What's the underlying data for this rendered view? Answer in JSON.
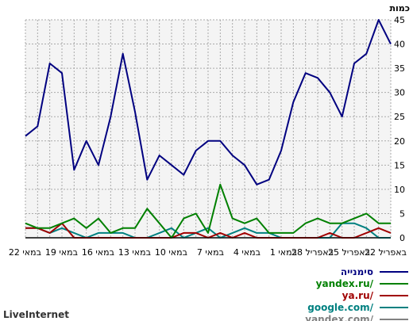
{
  "branding": "LiveInternet",
  "chart_data": {
    "type": "line",
    "ylabel": "כמות",
    "ylim": [
      0,
      45
    ],
    "yticks": [
      0,
      5,
      10,
      15,
      20,
      25,
      30,
      35,
      40,
      45
    ],
    "grid": true,
    "legend_position": "bottom-right",
    "xticks": [
      "22 באפריל",
      "25 באפריל",
      "28 באפריל",
      "1 במאי",
      "4 במאי",
      "7 במאי",
      "10 במאי",
      "13 במאי",
      "16 במאי",
      "19 במאי",
      "22 במאי"
    ],
    "x": [
      "22 באפריל",
      "23 באפריל",
      "24 באפריל",
      "25 באפריל",
      "26 באפריל",
      "27 באפריל",
      "28 באפריל",
      "29 באפריל",
      "30 באפריל",
      "1 במאי",
      "2 במאי",
      "3 במאי",
      "4 במאי",
      "5 במאי",
      "6 במאי",
      "7 במאי",
      "8 במאי",
      "9 במאי",
      "10 במאי",
      "11 במאי",
      "12 במאי",
      "13 במאי",
      "14 במאי",
      "15 במאי",
      "16 במאי",
      "17 במאי",
      "18 במאי",
      "19 במאי",
      "20 במאי",
      "21 במאי",
      "22 במאי"
    ],
    "series": [
      {
        "name": "סימנייה",
        "color": "#000080",
        "values": [
          40,
          45,
          38,
          36,
          25,
          30,
          33,
          34,
          28,
          18,
          12,
          11,
          15,
          17,
          20,
          20,
          18,
          13,
          15,
          17,
          12,
          26,
          38,
          25,
          15,
          20,
          14,
          34,
          36,
          23,
          21
        ]
      },
      {
        "name": "yandex.ru/",
        "color": "#008000",
        "values": [
          3,
          3,
          5,
          4,
          3,
          3,
          4,
          3,
          1,
          1,
          1,
          4,
          3,
          4,
          11,
          1,
          5,
          4,
          0,
          3,
          6,
          2,
          2,
          1,
          4,
          2,
          4,
          3,
          2,
          2,
          3
        ]
      },
      {
        "name": "ya.ru/",
        "color": "#a00000",
        "values": [
          1,
          2,
          1,
          0,
          0,
          1,
          0,
          0,
          0,
          0,
          0,
          0,
          1,
          0,
          1,
          0,
          1,
          1,
          0,
          0,
          0,
          0,
          0,
          0,
          0,
          0,
          0,
          3,
          1,
          2,
          2
        ]
      },
      {
        "name": "google.com/",
        "color": "#008080",
        "values": [
          0,
          0,
          2,
          3,
          3,
          0,
          0,
          0,
          0,
          0,
          1,
          1,
          2,
          1,
          0,
          2,
          1,
          0,
          2,
          1,
          0,
          0,
          1,
          1,
          1,
          0,
          1,
          2,
          1,
          2,
          2
        ]
      },
      {
        "name": "yandex.com/",
        "color": "#808080",
        "values": [
          0,
          0,
          0,
          0,
          0,
          0,
          0,
          0,
          0,
          0,
          0,
          0,
          0,
          0,
          0,
          0,
          0,
          0,
          0,
          0,
          0,
          0,
          0,
          0,
          0,
          0,
          0,
          0,
          0,
          0,
          0
        ]
      }
    ]
  }
}
